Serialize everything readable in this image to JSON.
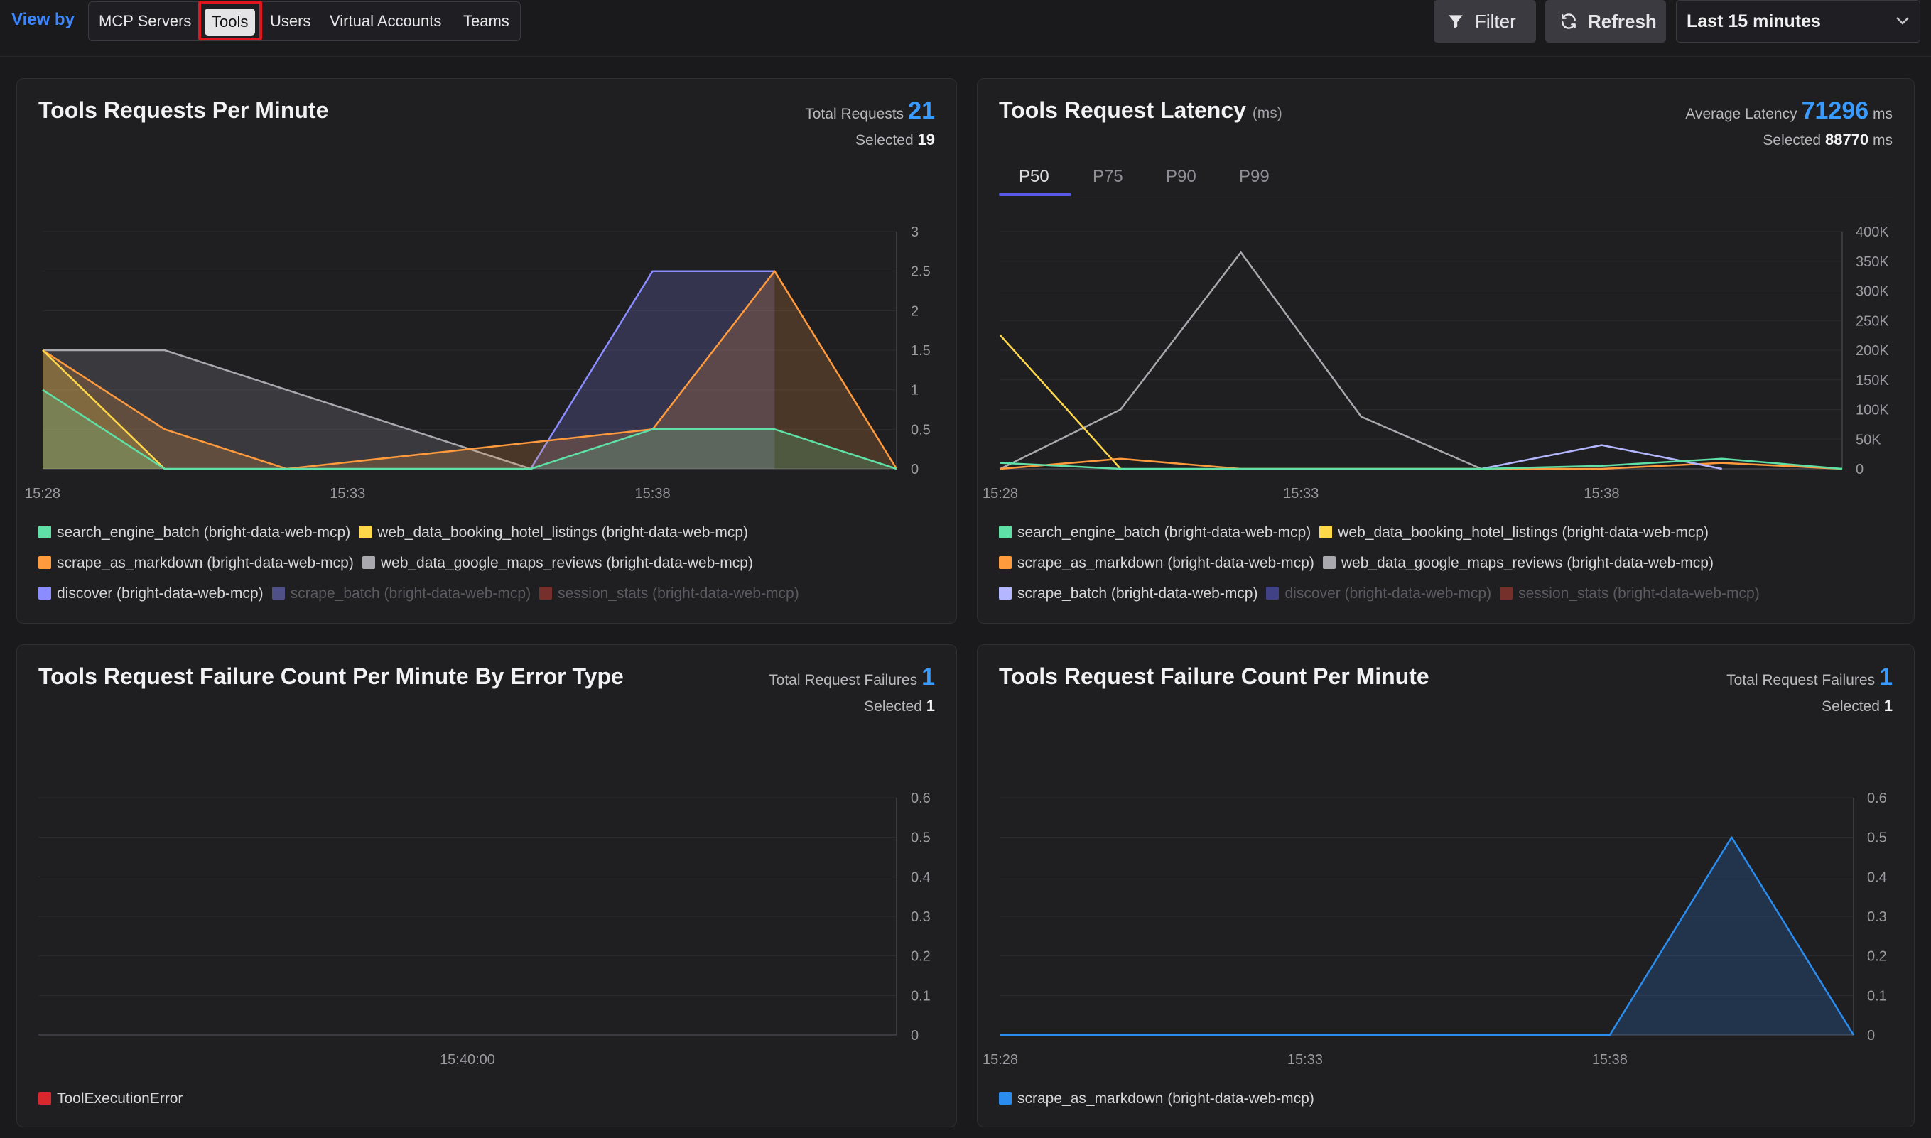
{
  "toolbar": {
    "view_by_label": "View by",
    "options": [
      "MCP Servers",
      "Tools",
      "Users",
      "Virtual Accounts",
      "Teams"
    ],
    "selected": "Tools",
    "filter_label": "Filter",
    "refresh_label": "Refresh",
    "time_range": "Last 15 minutes"
  },
  "panels": {
    "requests": {
      "title": "Tools Requests Per Minute",
      "total_label": "Total Requests",
      "total_value": "21",
      "selected_label": "Selected",
      "selected_value": "19",
      "legend": [
        {
          "label": "search_engine_batch (bright-data-web-mcp)",
          "color": "#5ee0a6",
          "enabled": true
        },
        {
          "label": "web_data_booking_hotel_listings (bright-data-web-mcp)",
          "color": "#ffd84a",
          "enabled": true
        },
        {
          "label": "scrape_as_markdown (bright-data-web-mcp)",
          "color": "#ff9a3d",
          "enabled": true
        },
        {
          "label": "web_data_google_maps_reviews (bright-data-web-mcp)",
          "color": "#a8a8ae",
          "enabled": true
        },
        {
          "label": "discover (bright-data-web-mcp)",
          "color": "#8a8cff",
          "enabled": true
        },
        {
          "label": "scrape_batch (bright-data-web-mcp)",
          "color": "#8a8cff",
          "enabled": false
        },
        {
          "label": "session_stats (bright-data-web-mcp)",
          "color": "#e0453a",
          "enabled": false
        }
      ]
    },
    "latency": {
      "title": "Tools Request Latency",
      "title_unit": "(ms)",
      "avg_label": "Average Latency",
      "avg_value": "71296",
      "avg_unit": "ms",
      "selected_label": "Selected",
      "selected_value": "88770",
      "selected_unit": "ms",
      "tabs": [
        "P50",
        "P75",
        "P90",
        "P99"
      ],
      "active_tab": "P50",
      "legend": [
        {
          "label": "search_engine_batch (bright-data-web-mcp)",
          "color": "#5ee0a6",
          "enabled": true
        },
        {
          "label": "web_data_booking_hotel_listings (bright-data-web-mcp)",
          "color": "#ffd84a",
          "enabled": true
        },
        {
          "label": "scrape_as_markdown (bright-data-web-mcp)",
          "color": "#ff9a3d",
          "enabled": true
        },
        {
          "label": "web_data_google_maps_reviews (bright-data-web-mcp)",
          "color": "#a8a8ae",
          "enabled": true
        },
        {
          "label": "scrape_batch (bright-data-web-mcp)",
          "color": "#b4b6ff",
          "enabled": true
        },
        {
          "label": "discover (bright-data-web-mcp)",
          "color": "#6a6cff",
          "enabled": false
        },
        {
          "label": "session_stats (bright-data-web-mcp)",
          "color": "#e0453a",
          "enabled": false
        }
      ]
    },
    "failures_by_type": {
      "title": "Tools Request Failure Count Per Minute By Error Type",
      "total_label": "Total Request Failures",
      "total_value": "1",
      "selected_label": "Selected",
      "selected_value": "1",
      "legend": [
        {
          "label": "ToolExecutionError",
          "color": "#d9272e",
          "enabled": true
        }
      ]
    },
    "failures": {
      "title": "Tools Request Failure Count Per Minute",
      "total_label": "Total Request Failures",
      "total_value": "1",
      "selected_label": "Selected",
      "selected_value": "1",
      "legend": [
        {
          "label": "scrape_as_markdown (bright-data-web-mcp)",
          "color": "#2b8cf0",
          "enabled": true
        }
      ]
    }
  },
  "chart_data": [
    {
      "id": "requests",
      "type": "area",
      "x": [
        "15:28",
        "15:29",
        "15:30",
        "15:31",
        "15:32",
        "15:33",
        "15:34",
        "15:35",
        "15:36",
        "15:37",
        "15:38",
        "15:39",
        "15:40",
        "15:41",
        "15:42"
      ],
      "x_tick_labels": [
        "15:28",
        "15:33",
        "15:38"
      ],
      "ylim": [
        0,
        3
      ],
      "y_ticks": [
        "0",
        "0.5",
        "1",
        "1.5",
        "2",
        "2.5",
        "3"
      ],
      "series": [
        {
          "name": "web_data_google_maps_reviews (bright-data-web-mcp)",
          "color": "#a8a8ae",
          "values": [
            1.5,
            1.5,
            1.5,
            null,
            null,
            null,
            null,
            null,
            0,
            null,
            null,
            null,
            null,
            null,
            null
          ]
        },
        {
          "name": "discover (bright-data-web-mcp)",
          "color": "#8a8cff",
          "values": [
            null,
            null,
            null,
            null,
            null,
            null,
            null,
            null,
            0,
            null,
            2.5,
            null,
            2.5,
            null,
            null
          ]
        },
        {
          "name": "scrape_as_markdown (bright-data-web-mcp)",
          "color": "#ff9a3d",
          "values": [
            1.5,
            null,
            0.5,
            null,
            0,
            null,
            null,
            null,
            null,
            null,
            0.5,
            null,
            2.5,
            null,
            0
          ]
        },
        {
          "name": "web_data_booking_hotel_listings (bright-data-web-mcp)",
          "color": "#ffd84a",
          "values": [
            1.5,
            null,
            0,
            null,
            null,
            null,
            null,
            null,
            null,
            null,
            null,
            null,
            null,
            null,
            null
          ]
        },
        {
          "name": "search_engine_batch (bright-data-web-mcp)",
          "color": "#5ee0a6",
          "values": [
            1,
            null,
            0,
            null,
            null,
            null,
            null,
            null,
            0,
            null,
            0.5,
            null,
            0.5,
            null,
            0
          ]
        }
      ]
    },
    {
      "id": "latency",
      "type": "line",
      "x": [
        "15:28",
        "15:29",
        "15:30",
        "15:31",
        "15:32",
        "15:33",
        "15:34",
        "15:35",
        "15:36",
        "15:37",
        "15:38",
        "15:39",
        "15:40",
        "15:41",
        "15:42"
      ],
      "x_tick_labels": [
        "15:28",
        "15:33",
        "15:38"
      ],
      "ylim": [
        0,
        400000
      ],
      "y_ticks": [
        "0",
        "50K",
        "100K",
        "150K",
        "200K",
        "250K",
        "300K",
        "350K",
        "400K"
      ],
      "series": [
        {
          "name": "web_data_google_maps_reviews (bright-data-web-mcp)",
          "color": "#a8a8ae",
          "values": [
            0,
            null,
            100000,
            null,
            365000,
            null,
            88000,
            null,
            0,
            null,
            null,
            null,
            null,
            null,
            null
          ]
        },
        {
          "name": "web_data_booking_hotel_listings (bright-data-web-mcp)",
          "color": "#ffd84a",
          "values": [
            225000,
            null,
            0,
            null,
            null,
            null,
            null,
            null,
            null,
            null,
            null,
            null,
            null,
            null,
            null
          ]
        },
        {
          "name": "scrape_as_markdown (bright-data-web-mcp)",
          "color": "#ff9a3d",
          "values": [
            0,
            null,
            17000,
            null,
            0,
            null,
            null,
            null,
            null,
            null,
            0,
            null,
            10000,
            null,
            0
          ]
        },
        {
          "name": "scrape_batch (bright-data-web-mcp)",
          "color": "#b4b6ff",
          "values": [
            null,
            null,
            null,
            null,
            null,
            null,
            null,
            null,
            0,
            null,
            40000,
            null,
            0,
            null,
            null
          ]
        },
        {
          "name": "search_engine_batch (bright-data-web-mcp)",
          "color": "#5ee0a6",
          "values": [
            10000,
            null,
            0,
            null,
            null,
            null,
            null,
            null,
            0,
            null,
            5000,
            null,
            17000,
            null,
            0
          ]
        }
      ]
    },
    {
      "id": "failures_by_type",
      "type": "bar",
      "x_tick_labels": [
        "15:40:00"
      ],
      "ylim": [
        0,
        0.6
      ],
      "y_ticks": [
        "0",
        "0.1",
        "0.2",
        "0.3",
        "0.4",
        "0.5",
        "0.6"
      ],
      "series": [
        {
          "name": "ToolExecutionError",
          "color": "#d9272e",
          "values": []
        }
      ]
    },
    {
      "id": "failures",
      "type": "area",
      "x": [
        "15:28",
        "15:29",
        "15:30",
        "15:31",
        "15:32",
        "15:33",
        "15:34",
        "15:35",
        "15:36",
        "15:37",
        "15:38",
        "15:39",
        "15:40",
        "15:41",
        "15:42"
      ],
      "x_tick_labels": [
        "15:28",
        "15:33",
        "15:38"
      ],
      "ylim": [
        0,
        0.6
      ],
      "y_ticks": [
        "0",
        "0.1",
        "0.2",
        "0.3",
        "0.4",
        "0.5",
        "0.6"
      ],
      "series": [
        {
          "name": "scrape_as_markdown (bright-data-web-mcp)",
          "color": "#2b8cf0",
          "values": [
            0,
            null,
            null,
            null,
            null,
            null,
            null,
            null,
            null,
            null,
            0,
            null,
            0.5,
            null,
            0
          ]
        }
      ]
    }
  ]
}
